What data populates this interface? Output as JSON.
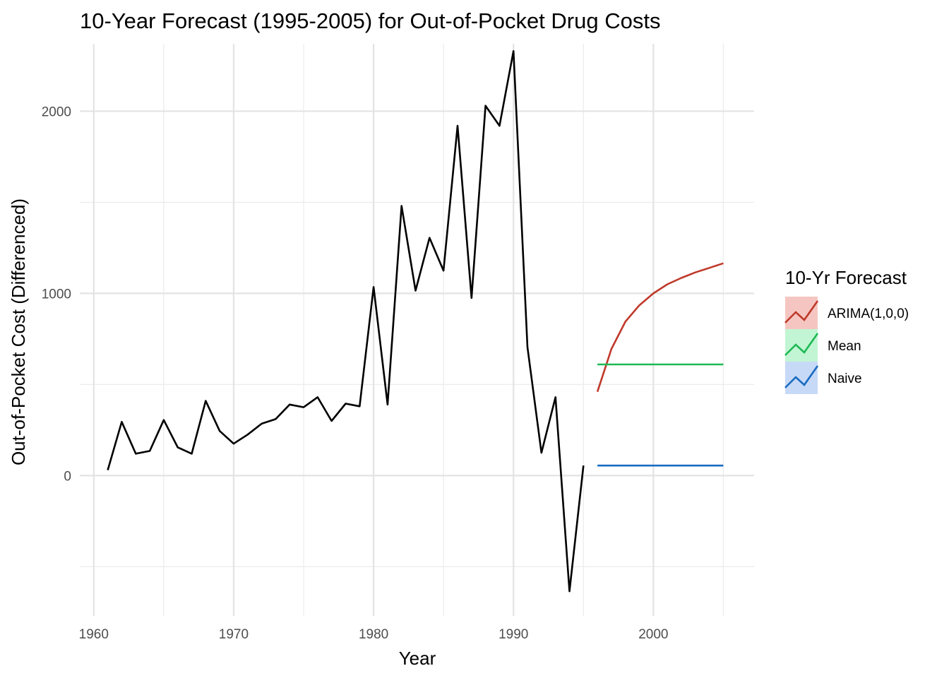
{
  "chart_data": {
    "type": "line",
    "title": "10-Year Forecast (1995-2005) for Out-of-Pocket Drug Costs",
    "xlabel": "Year",
    "ylabel": "Out-of-Pocket Cost (Differenced)",
    "xlim": [
      1959,
      2007.2
    ],
    "ylim": [
      -770,
      2370
    ],
    "x_ticks": [
      1960,
      1970,
      1980,
      1990,
      2000
    ],
    "y_ticks": [
      0,
      1000,
      2000
    ],
    "grid": true,
    "legend": {
      "title": "10-Yr Forecast",
      "position": "right",
      "entries": [
        {
          "name": "ARIMA(1,0,0)",
          "color": "#C0392B",
          "fill": "#F5C6C1"
        },
        {
          "name": "Mean",
          "color": "#1DB954",
          "fill": "#C2F5D3"
        },
        {
          "name": "Naive",
          "color": "#1A6BC0",
          "fill": "#C6D9F7"
        }
      ]
    },
    "history": {
      "color": "#000000",
      "x": [
        1961,
        1962,
        1963,
        1964,
        1965,
        1966,
        1967,
        1968,
        1969,
        1970,
        1971,
        1972,
        1973,
        1974,
        1975,
        1976,
        1977,
        1978,
        1979,
        1980,
        1981,
        1982,
        1983,
        1984,
        1985,
        1986,
        1987,
        1988,
        1989,
        1990,
        1991,
        1992,
        1993,
        1994,
        1995
      ],
      "y": [
        30,
        295,
        120,
        135,
        305,
        155,
        120,
        410,
        245,
        175,
        225,
        285,
        310,
        390,
        375,
        430,
        300,
        395,
        380,
        1035,
        390,
        1480,
        1015,
        1305,
        1125,
        1920,
        975,
        2030,
        1920,
        2330,
        705,
        125,
        430,
        -635,
        55
      ]
    },
    "series": [
      {
        "name": "ARIMA(1,0,0)",
        "color": "#C0392B",
        "x": [
          1996,
          1997,
          1998,
          1999,
          2000,
          2001,
          2002,
          2003,
          2004,
          2005
        ],
        "y": [
          460,
          695,
          845,
          935,
          1000,
          1050,
          1085,
          1115,
          1140,
          1165
        ]
      },
      {
        "name": "Mean",
        "color": "#1DB954",
        "x": [
          1996,
          1997,
          1998,
          1999,
          2000,
          2001,
          2002,
          2003,
          2004,
          2005
        ],
        "y": [
          610,
          610,
          610,
          610,
          610,
          610,
          610,
          610,
          610,
          610
        ]
      },
      {
        "name": "Naive",
        "color": "#1A6BC0",
        "x": [
          1996,
          1997,
          1998,
          1999,
          2000,
          2001,
          2002,
          2003,
          2004,
          2005
        ],
        "y": [
          55,
          55,
          55,
          55,
          55,
          55,
          55,
          55,
          55,
          55
        ]
      }
    ]
  }
}
